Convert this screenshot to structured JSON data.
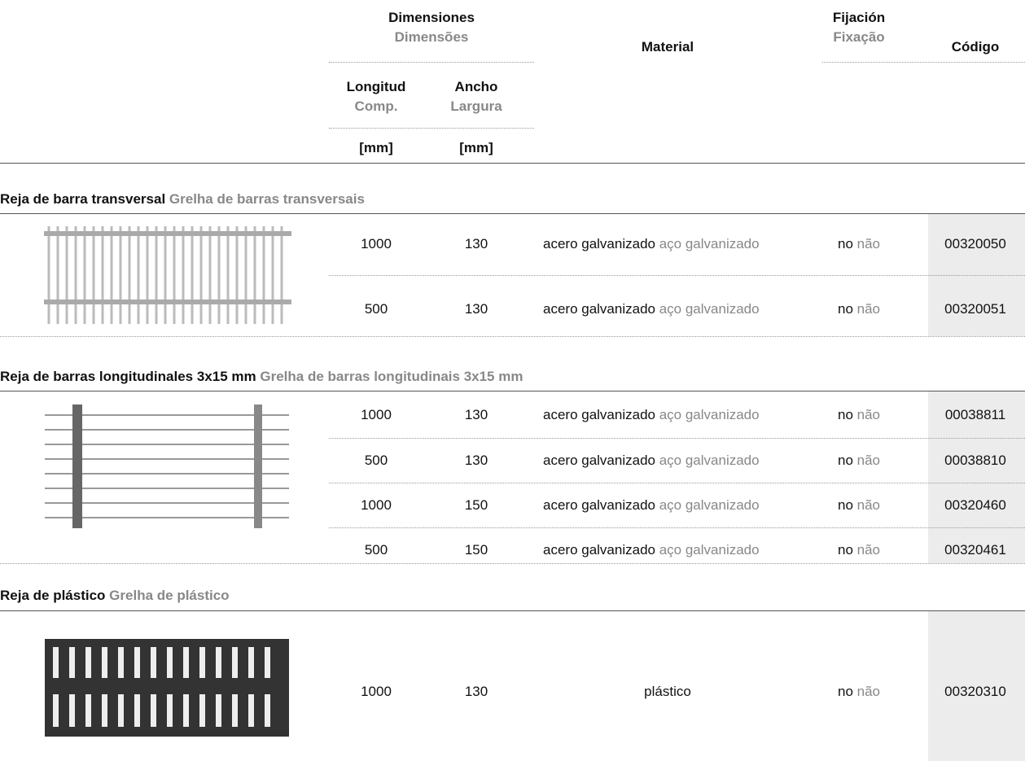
{
  "header": {
    "dimensions_es": "Dimensiones",
    "dimensions_pt": "Dimensões",
    "material": "Material",
    "fixation_es": "Fijación",
    "fixation_pt": "Fixação",
    "code": "Código",
    "length_es": "Longitud",
    "length_pt": "Comp.",
    "width_es": "Ancho",
    "width_pt": "Largura",
    "length_unit": "[mm]",
    "width_unit": "[mm]"
  },
  "sections": [
    {
      "title_es": "Reja de barra transversal",
      "title_pt": "Grelha de barras transversais",
      "rows": [
        {
          "length": "1000",
          "width": "130",
          "material_es": "acero galvanizado",
          "material_pt": "aço galvanizado",
          "fixation_es": "no",
          "fixation_pt": "não",
          "code": "00320050"
        },
        {
          "length": "500",
          "width": "130",
          "material_es": "acero galvanizado",
          "material_pt": "aço galvanizado",
          "fixation_es": "no",
          "fixation_pt": "não",
          "code": "00320051"
        }
      ]
    },
    {
      "title_es": "Reja de barras longitudinales 3x15 mm",
      "title_pt": "Grelha de barras longitudinais 3x15 mm",
      "rows": [
        {
          "length": "1000",
          "width": "130",
          "material_es": "acero galvanizado",
          "material_pt": "aço galvanizado",
          "fixation_es": "no",
          "fixation_pt": "não",
          "code": "00038811"
        },
        {
          "length": "500",
          "width": "130",
          "material_es": "acero galvanizado",
          "material_pt": "aço galvanizado",
          "fixation_es": "no",
          "fixation_pt": "não",
          "code": "00038810"
        },
        {
          "length": "1000",
          "width": "150",
          "material_es": "acero galvanizado",
          "material_pt": "aço galvanizado",
          "fixation_es": "no",
          "fixation_pt": "não",
          "code": "00320460"
        },
        {
          "length": "500",
          "width": "150",
          "material_es": "acero galvanizado",
          "material_pt": "aço galvanizado",
          "fixation_es": "no",
          "fixation_pt": "não",
          "code": "00320461"
        }
      ]
    },
    {
      "title_es": "Reja de plástico",
      "title_pt": "Grelha de plástico",
      "rows": [
        {
          "length": "1000",
          "width": "130",
          "material_es": "plástico",
          "fixation_es": "no",
          "fixation_pt": "não",
          "code": "00320310"
        }
      ]
    }
  ]
}
